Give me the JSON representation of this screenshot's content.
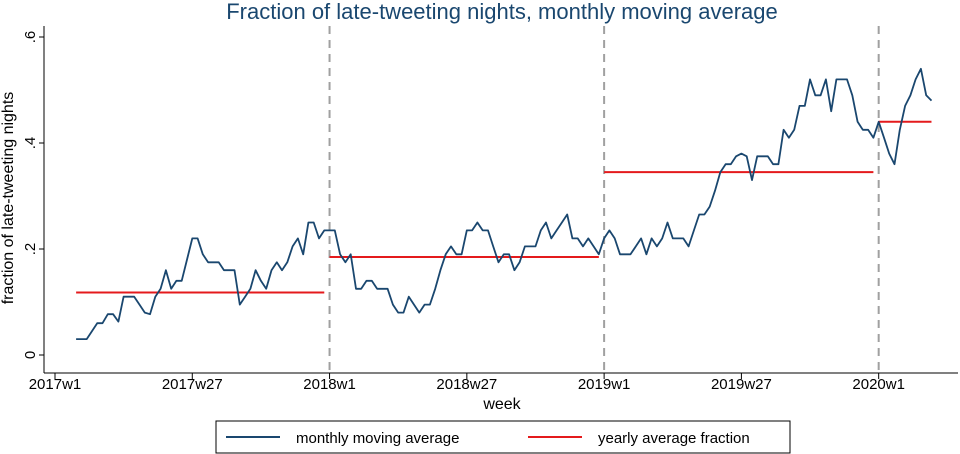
{
  "chart_data": {
    "type": "line",
    "title": "Fraction of late-tweeting nights, monthly moving average",
    "xlabel": "week",
    "ylabel": "fraction of late-tweeting nights",
    "xlim": [
      "2017w1",
      "2020w22"
    ],
    "ylim": [
      0,
      0.62
    ],
    "x_ticks": [
      "2017w1",
      "2017w27",
      "2018w1",
      "2018w27",
      "2019w1",
      "2019w27",
      "2020w1"
    ],
    "y_ticks": [
      {
        "value": 0,
        "label": "0"
      },
      {
        "value": 0.2,
        "label": ".2"
      },
      {
        "value": 0.4,
        "label": ".4"
      },
      {
        "value": 0.6,
        "label": ".6"
      }
    ],
    "year_boundaries": [
      "2018w1",
      "2019w1",
      "2020w1"
    ],
    "legend": {
      "position": "bottom"
    },
    "colors": {
      "moving_average": "#1a476f",
      "yearly_average": "#e41a1c",
      "boundary": "#a0a0a0",
      "title": "#1a476f"
    },
    "series": [
      {
        "name": "monthly moving average",
        "style": "line",
        "x": [
          "2017w5",
          "2017w6",
          "2017w7",
          "2017w8",
          "2017w9",
          "2017w10",
          "2017w11",
          "2017w12",
          "2017w13",
          "2017w14",
          "2017w15",
          "2017w16",
          "2017w17",
          "2017w18",
          "2017w19",
          "2017w20",
          "2017w21",
          "2017w22",
          "2017w23",
          "2017w24",
          "2017w25",
          "2017w26",
          "2017w27",
          "2017w28",
          "2017w29",
          "2017w30",
          "2017w31",
          "2017w32",
          "2017w33",
          "2017w34",
          "2017w35",
          "2017w36",
          "2017w37",
          "2017w38",
          "2017w39",
          "2017w40",
          "2017w41",
          "2017w42",
          "2017w43",
          "2017w44",
          "2017w45",
          "2017w46",
          "2017w47",
          "2017w48",
          "2017w49",
          "2017w50",
          "2017w51",
          "2017w52",
          "2018w1",
          "2018w2",
          "2018w3",
          "2018w4",
          "2018w5",
          "2018w6",
          "2018w7",
          "2018w8",
          "2018w9",
          "2018w10",
          "2018w11",
          "2018w12",
          "2018w13",
          "2018w14",
          "2018w15",
          "2018w16",
          "2018w17",
          "2018w18",
          "2018w19",
          "2018w20",
          "2018w21",
          "2018w22",
          "2018w23",
          "2018w24",
          "2018w25",
          "2018w26",
          "2018w27",
          "2018w28",
          "2018w29",
          "2018w30",
          "2018w31",
          "2018w32",
          "2018w33",
          "2018w34",
          "2018w35",
          "2018w36",
          "2018w37",
          "2018w38",
          "2018w39",
          "2018w40",
          "2018w41",
          "2018w42",
          "2018w43",
          "2018w44",
          "2018w45",
          "2018w46",
          "2018w47",
          "2018w48",
          "2018w49",
          "2018w50",
          "2018w51",
          "2018w52",
          "2019w1",
          "2019w2",
          "2019w3",
          "2019w4",
          "2019w5",
          "2019w6",
          "2019w7",
          "2019w8",
          "2019w9",
          "2019w10",
          "2019w11",
          "2019w12",
          "2019w13",
          "2019w14",
          "2019w15",
          "2019w16",
          "2019w17",
          "2019w18",
          "2019w19",
          "2019w20",
          "2019w21",
          "2019w22",
          "2019w23",
          "2019w24",
          "2019w25",
          "2019w26",
          "2019w27",
          "2019w28",
          "2019w29",
          "2019w30",
          "2019w31",
          "2019w32",
          "2019w33",
          "2019w34",
          "2019w35",
          "2019w36",
          "2019w37",
          "2019w38",
          "2019w39",
          "2019w40",
          "2019w41",
          "2019w42",
          "2019w43",
          "2019w44",
          "2019w45",
          "2019w46",
          "2019w47",
          "2019w48",
          "2019w49",
          "2019w50",
          "2019w51",
          "2019w52",
          "2020w1",
          "2020w2",
          "2020w3",
          "2020w4",
          "2020w5",
          "2020w6",
          "2020w7",
          "2020w8",
          "2020w9",
          "2020w10",
          "2020w11"
        ],
        "y": [
          0.03,
          0.03,
          0.03,
          0.045,
          0.06,
          0.06,
          0.077,
          0.077,
          0.063,
          0.11,
          0.11,
          0.11,
          0.095,
          0.08,
          0.077,
          0.11,
          0.125,
          0.16,
          0.125,
          0.14,
          0.14,
          0.18,
          0.22,
          0.22,
          0.19,
          0.175,
          0.175,
          0.175,
          0.16,
          0.16,
          0.16,
          0.095,
          0.11,
          0.125,
          0.16,
          0.14,
          0.125,
          0.16,
          0.175,
          0.16,
          0.175,
          0.205,
          0.22,
          0.19,
          0.25,
          0.25,
          0.22,
          0.235,
          0.235,
          0.235,
          0.19,
          0.175,
          0.19,
          0.125,
          0.125,
          0.14,
          0.14,
          0.125,
          0.125,
          0.125,
          0.095,
          0.08,
          0.08,
          0.11,
          0.095,
          0.08,
          0.095,
          0.095,
          0.125,
          0.16,
          0.19,
          0.205,
          0.19,
          0.19,
          0.235,
          0.235,
          0.25,
          0.235,
          0.235,
          0.205,
          0.175,
          0.19,
          0.19,
          0.16,
          0.175,
          0.205,
          0.205,
          0.205,
          0.235,
          0.25,
          0.22,
          0.235,
          0.25,
          0.265,
          0.22,
          0.22,
          0.205,
          0.22,
          0.205,
          0.19,
          0.22,
          0.235,
          0.22,
          0.19,
          0.19,
          0.19,
          0.205,
          0.22,
          0.19,
          0.22,
          0.205,
          0.22,
          0.25,
          0.22,
          0.22,
          0.22,
          0.205,
          0.235,
          0.265,
          0.265,
          0.28,
          0.31,
          0.345,
          0.36,
          0.36,
          0.375,
          0.38,
          0.375,
          0.33,
          0.375,
          0.375,
          0.375,
          0.36,
          0.36,
          0.425,
          0.41,
          0.425,
          0.47,
          0.47,
          0.52,
          0.49,
          0.49,
          0.52,
          0.46,
          0.52,
          0.52,
          0.52,
          0.49,
          0.44,
          0.425,
          0.425,
          0.41,
          0.44,
          0.41,
          0.38,
          0.36,
          0.425,
          0.47,
          0.49,
          0.52,
          0.54,
          0.49,
          0.48
        ]
      },
      {
        "name": "yearly average fraction",
        "style": "step",
        "segments": [
          {
            "x": [
              "2017w5",
              "2017w52"
            ],
            "y": 0.118
          },
          {
            "x": [
              "2018w1",
              "2018w52"
            ],
            "y": 0.185
          },
          {
            "x": [
              "2019w1",
              "2019w52"
            ],
            "y": 0.345
          },
          {
            "x": [
              "2020w1",
              "2020w11"
            ],
            "y": 0.44
          }
        ]
      }
    ]
  }
}
